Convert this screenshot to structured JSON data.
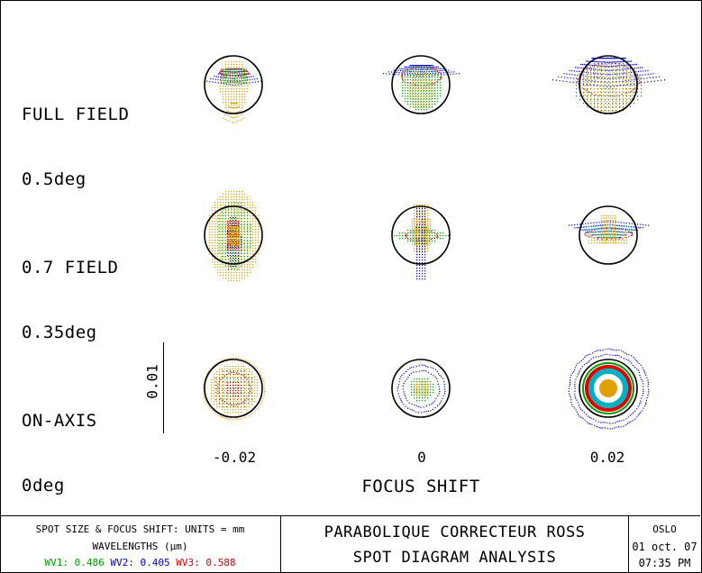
{
  "rows": [
    {
      "field": "FULL FIELD",
      "angle": "0.5deg"
    },
    {
      "field": "0.7 FIELD",
      "angle": "0.35deg"
    },
    {
      "field": "ON-AXIS",
      "angle": "0deg"
    }
  ],
  "focus_shift_ticks": [
    "-0.02",
    "0",
    "0.02"
  ],
  "x_axis_label": "FOCUS SHIFT",
  "scale_bar_label": "0.01",
  "title_block": {
    "units": "SPOT SIZE & FOCUS SHIFT: UNITS = mm",
    "wavelengths_label": "WAVELENGTHS (μm)",
    "wv1": "WV1: 0.486",
    "wv2": "WV2: 0.405",
    "wv3": "WV3: 0.588",
    "title": "PARABOLIQUE CORRECTEUR ROSS",
    "subtitle": "SPOT DIAGRAM ANALYSIS",
    "program": "OSLO",
    "date": "01 oct. 07",
    "time": "07:35 PM"
  },
  "colors": {
    "wv1": "#00a000",
    "wv2": "#0000e0",
    "wv3": "#e00000",
    "orange": "#e0a000",
    "cyan": "#00b0c0",
    "airy_disk": "#000000"
  },
  "spot_grid": [
    [
      {
        "shape": "full-neg",
        "tick": "-0.02"
      },
      {
        "shape": "full-zero",
        "tick": "0"
      },
      {
        "shape": "full-pos",
        "tick": "0.02"
      }
    ],
    [
      {
        "shape": "mid-neg",
        "tick": "-0.02"
      },
      {
        "shape": "mid-zero",
        "tick": "0"
      },
      {
        "shape": "mid-pos",
        "tick": "0.02"
      }
    ],
    [
      {
        "shape": "axis-neg",
        "tick": "-0.02"
      },
      {
        "shape": "axis-zero",
        "tick": "0"
      },
      {
        "shape": "axis-pos",
        "tick": "0.02"
      }
    ]
  ]
}
